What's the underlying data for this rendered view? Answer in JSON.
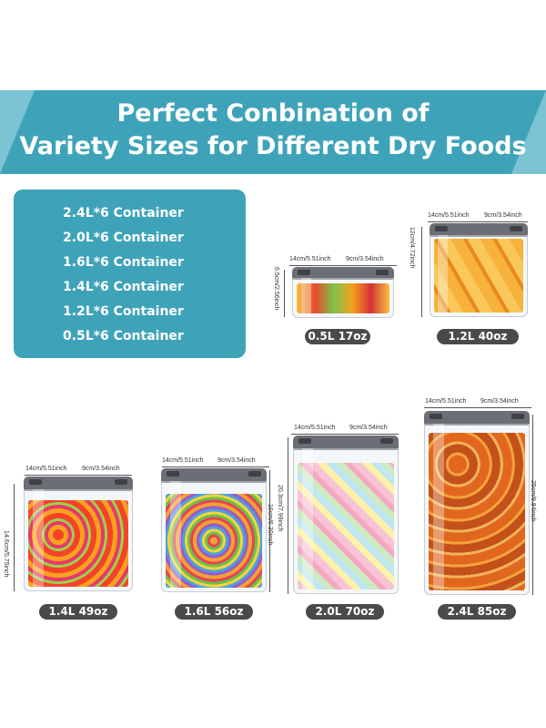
{
  "banner": {
    "line1": "Perfect Conbination of",
    "line2": "Variety Sizes for Different Dry Foods"
  },
  "contents_list": [
    "2.4L*6 Container",
    "2.0L*6 Container",
    "1.6L*6 Container",
    "1.4L*6 Container",
    "1.2L*6 Container",
    "0.5L*6 Container"
  ],
  "containers": [
    {
      "id": "c05",
      "label": "0.5L 17oz",
      "width_dim": "14cm/5.51inch",
      "depth_dim": "9cm/3.54inch",
      "height_dim": "6.5cm/2.56inch",
      "food": "gummy candy",
      "fill_color": "#f2b13a"
    },
    {
      "id": "c12",
      "label": "1.2L 40oz",
      "width_dim": "14cm/5.51inch",
      "depth_dim": "9cm/3.54inch",
      "height_dim": "12cm/4.72inch",
      "food": "dried mango",
      "fill_color": "#f0a02a"
    },
    {
      "id": "c14",
      "label": "1.4L 49oz",
      "width_dim": "14cm/5.51inch",
      "depth_dim": "9cm/3.54inch",
      "height_dim": "14.6cm/5.75inch",
      "food": "gummy candy",
      "fill_color": "#e8572b"
    },
    {
      "id": "c16",
      "label": "1.6L 56oz",
      "width_dim": "14cm/5.51inch",
      "depth_dim": "9cm/3.54inch",
      "height_dim": "16cm/6.30inch",
      "food": "fruit loops cereal",
      "fill_color": "#e9a13a"
    },
    {
      "id": "c20",
      "label": "2.0L 70oz",
      "width_dim": "14cm/5.51inch",
      "depth_dim": "9cm/3.54inch",
      "height_dim": "20.3cm/7.99inch",
      "food": "pastel marshmallows",
      "fill_color": "#f3c6d9"
    },
    {
      "id": "c24",
      "label": "2.4L 85oz",
      "width_dim": "14cm/5.51inch",
      "depth_dim": "9cm/3.54inch",
      "height_dim": "25cm/9.84inch",
      "food": "dried orange slices",
      "fill_color": "#d9661f"
    }
  ],
  "colors": {
    "accent": "#3ea3b9",
    "pill": "#4a4a4a",
    "lid": "#6b6f75"
  }
}
